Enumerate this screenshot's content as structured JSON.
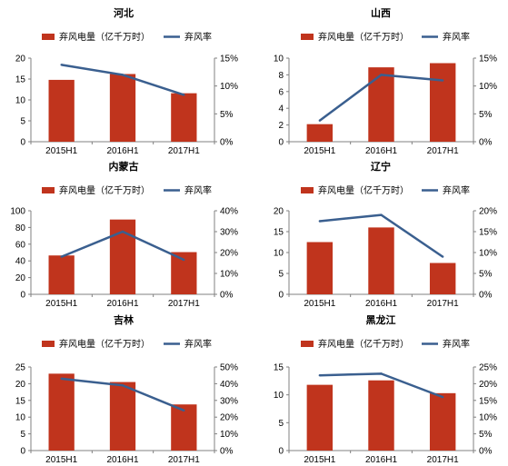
{
  "colors": {
    "bar": "#C0341D",
    "line": "#3A5F8F",
    "axis": "#808080",
    "text": "#000000"
  },
  "chart_data": [
    {
      "type": "bar+line",
      "title": "河北",
      "categories": [
        "2015H1",
        "2016H1",
        "2017H1"
      ],
      "series": [
        {
          "name": "弃风电量（亿千万时）",
          "type": "bar",
          "axis": "left",
          "values": [
            14.8,
            16.2,
            11.6
          ]
        },
        {
          "name": "弃风率",
          "type": "line",
          "axis": "right",
          "values": [
            13.8,
            12.0,
            8.4
          ]
        }
      ],
      "y_left": {
        "min": 0,
        "max": 20,
        "ticks": [
          0,
          5,
          10,
          15,
          20
        ]
      },
      "y_right": {
        "min": 0,
        "max": 15,
        "ticks": [
          0,
          5,
          10,
          15
        ],
        "unit": "%"
      },
      "legend": "top"
    },
    {
      "type": "bar+line",
      "title": "山西",
      "categories": [
        "2015H1",
        "2016H1",
        "2017H1"
      ],
      "series": [
        {
          "name": "弃风电量（亿千万时）",
          "type": "bar",
          "axis": "left",
          "values": [
            2.1,
            8.9,
            9.4
          ]
        },
        {
          "name": "弃风率",
          "type": "line",
          "axis": "right",
          "values": [
            3.8,
            12.0,
            11.0
          ]
        }
      ],
      "y_left": {
        "min": 0,
        "max": 10,
        "ticks": [
          0,
          2,
          4,
          6,
          8,
          10
        ]
      },
      "y_right": {
        "min": 0,
        "max": 15,
        "ticks": [
          0,
          5,
          10,
          15
        ],
        "unit": "%"
      },
      "legend": "top"
    },
    {
      "type": "bar+line",
      "title": "内蒙古",
      "categories": [
        "2015H1",
        "2016H1",
        "2017H1"
      ],
      "series": [
        {
          "name": "弃风电量（亿千万时）",
          "type": "bar",
          "axis": "left",
          "values": [
            46.5,
            89.5,
            50.5
          ]
        },
        {
          "name": "弃风率",
          "type": "line",
          "axis": "right",
          "values": [
            18.0,
            30.0,
            16.5
          ]
        }
      ],
      "y_left": {
        "min": 0,
        "max": 100,
        "ticks": [
          0,
          20,
          40,
          60,
          80,
          100
        ]
      },
      "y_right": {
        "min": 0,
        "max": 40,
        "ticks": [
          0,
          10,
          20,
          30,
          40
        ],
        "unit": "%"
      },
      "legend": "top"
    },
    {
      "type": "bar+line",
      "title": "辽宁",
      "categories": [
        "2015H1",
        "2016H1",
        "2017H1"
      ],
      "series": [
        {
          "name": "弃风电量（亿千万时）",
          "type": "bar",
          "axis": "left",
          "values": [
            12.5,
            16.0,
            7.5
          ]
        },
        {
          "name": "弃风率",
          "type": "line",
          "axis": "right",
          "values": [
            17.5,
            19.0,
            9.0
          ]
        }
      ],
      "y_left": {
        "min": 0,
        "max": 20,
        "ticks": [
          0,
          5,
          10,
          15,
          20
        ]
      },
      "y_right": {
        "min": 0,
        "max": 20,
        "ticks": [
          0,
          5,
          10,
          15,
          20
        ],
        "unit": "%"
      },
      "legend": "top"
    },
    {
      "type": "bar+line",
      "title": "吉林",
      "categories": [
        "2015H1",
        "2016H1",
        "2017H1"
      ],
      "series": [
        {
          "name": "弃风电量（亿千万时）",
          "type": "bar",
          "axis": "left",
          "values": [
            23.0,
            20.5,
            13.8
          ]
        },
        {
          "name": "弃风率",
          "type": "line",
          "axis": "right",
          "values": [
            43.0,
            39.0,
            24.0
          ]
        }
      ],
      "y_left": {
        "min": 0,
        "max": 25,
        "ticks": [
          0,
          5,
          10,
          15,
          20,
          25
        ]
      },
      "y_right": {
        "min": 0,
        "max": 50,
        "ticks": [
          0,
          10,
          20,
          30,
          40,
          50
        ],
        "unit": "%"
      },
      "legend": "top"
    },
    {
      "type": "bar+line",
      "title": "黑龙江",
      "categories": [
        "2015H1",
        "2016H1",
        "2017H1"
      ],
      "series": [
        {
          "name": "弃风电量（亿千万时）",
          "type": "bar",
          "axis": "left",
          "values": [
            11.8,
            12.6,
            10.3
          ]
        },
        {
          "name": "弃风率",
          "type": "line",
          "axis": "right",
          "values": [
            22.5,
            23.0,
            16.0
          ]
        }
      ],
      "y_left": {
        "min": 0,
        "max": 15,
        "ticks": [
          0,
          5,
          10,
          15
        ]
      },
      "y_right": {
        "min": 0,
        "max": 25,
        "ticks": [
          0,
          5,
          10,
          15,
          20,
          25
        ],
        "unit": "%"
      },
      "legend": "top"
    }
  ]
}
